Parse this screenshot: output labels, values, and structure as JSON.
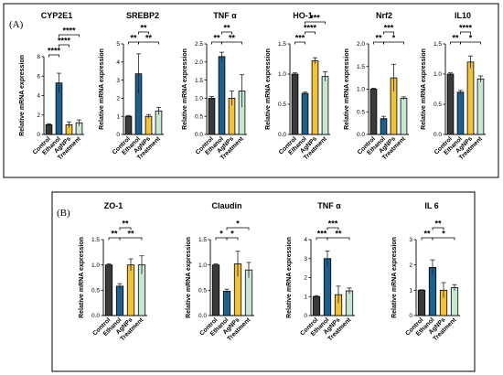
{
  "panels": [
    {
      "label": "(A)"
    },
    {
      "label": "(B)"
    }
  ],
  "colors": {
    "Control": "#3a3a3a",
    "Ethanol": "#1f5f8b",
    "AgNPs": "#f2c23a",
    "Treatment": "#c9e6d2"
  },
  "chart_data": [
    {
      "type": "bar",
      "panel": "A",
      "title": "CYP2E1",
      "ylabel": "Relative mRNA expression",
      "categories": [
        "Control",
        "Ethanol",
        "AgNPs",
        "Treatment"
      ],
      "values": [
        1.0,
        5.3,
        1.0,
        1.2
      ],
      "errors": [
        0.1,
        1.0,
        0.3,
        0.3
      ],
      "ylim": [
        0,
        8
      ],
      "yticks": [
        0,
        2,
        4,
        6,
        8
      ],
      "brackets": [
        {
          "from": 0,
          "to": 1,
          "level": 0,
          "label": "****"
        },
        {
          "from": 1,
          "to": 2,
          "level": 1,
          "label": "****"
        },
        {
          "from": 1,
          "to": 3,
          "level": 2,
          "label": "****"
        }
      ]
    },
    {
      "type": "bar",
      "panel": "A",
      "title": "SREBP2",
      "ylabel": "Relative mRNA expression",
      "categories": [
        "Control",
        "Ethanol",
        "AgNPs",
        "Treatment"
      ],
      "values": [
        1.0,
        3.35,
        1.0,
        1.3
      ],
      "errors": [
        0.05,
        1.1,
        0.1,
        0.2
      ],
      "ylim": [
        0,
        5
      ],
      "yticks": [
        0,
        1,
        2,
        3,
        4,
        5
      ],
      "brackets": [
        {
          "from": 0,
          "to": 1,
          "level": 0,
          "label": "**"
        },
        {
          "from": 1,
          "to": 2,
          "level": 1,
          "label": "**"
        },
        {
          "from": 1,
          "to": 3,
          "level": 0,
          "label": "**"
        }
      ]
    },
    {
      "type": "bar",
      "panel": "A",
      "title": "TNF α",
      "ylabel": "Relative mRNA expression",
      "categories": [
        "Control",
        "Ethanol",
        "AgNPs",
        "Treatment"
      ],
      "values": [
        1.0,
        2.15,
        1.0,
        1.2
      ],
      "errors": [
        0.05,
        0.12,
        0.2,
        0.45
      ],
      "ylim": [
        0,
        2.5
      ],
      "yticks": [
        0.0,
        0.5,
        1.0,
        1.5,
        2.0,
        2.5
      ],
      "brackets": [
        {
          "from": 0,
          "to": 1,
          "level": 0,
          "label": "**"
        },
        {
          "from": 1,
          "to": 2,
          "level": 1,
          "label": "**"
        },
        {
          "from": 1,
          "to": 3,
          "level": 0,
          "label": "**"
        }
      ]
    },
    {
      "type": "bar",
      "panel": "A",
      "title": "HO-1",
      "ylabel": "Relative mRNA expression",
      "categories": [
        "Control",
        "Ethanol",
        "AgNPs",
        "Treatment"
      ],
      "values": [
        1.0,
        0.68,
        1.22,
        0.96
      ],
      "errors": [
        0.02,
        0.02,
        0.05,
        0.08
      ],
      "ylim": [
        0,
        1.5
      ],
      "yticks": [
        0.0,
        0.5,
        1.0,
        1.5
      ],
      "brackets": [
        {
          "from": 0,
          "to": 1,
          "level": 0,
          "label": "***"
        },
        {
          "from": 1,
          "to": 2,
          "level": 1,
          "label": "****"
        },
        {
          "from": 1,
          "to": 3,
          "level": 2,
          "label": "***"
        }
      ]
    },
    {
      "type": "bar",
      "panel": "A",
      "title": "Nrf2",
      "ylabel": "Relative mRNA expression",
      "categories": [
        "Control",
        "Ethanol",
        "AgNPs",
        "Treatment"
      ],
      "values": [
        1.0,
        0.35,
        1.25,
        0.8
      ],
      "errors": [
        0.02,
        0.05,
        0.3,
        0.03
      ],
      "ylim": [
        0,
        2.0
      ],
      "yticks": [
        0.0,
        0.5,
        1.0,
        1.5,
        2.0
      ],
      "brackets": [
        {
          "from": 0,
          "to": 1,
          "level": 0,
          "label": "**"
        },
        {
          "from": 1,
          "to": 2,
          "level": 1,
          "label": "***"
        },
        {
          "from": 1,
          "to": 3,
          "level": 0,
          "label": "*"
        }
      ]
    },
    {
      "type": "bar",
      "panel": "A",
      "title": "IL10",
      "ylabel": "Relative mRNA expression",
      "categories": [
        "Control",
        "Ethanol",
        "AgNPs",
        "Treatment"
      ],
      "values": [
        1.0,
        0.7,
        1.2,
        0.92
      ],
      "errors": [
        0.02,
        0.03,
        0.1,
        0.05
      ],
      "ylim": [
        0,
        1.5
      ],
      "yticks": [
        0.0,
        0.5,
        1.0,
        1.5
      ],
      "brackets": [
        {
          "from": 0,
          "to": 1,
          "level": 0,
          "label": "**"
        },
        {
          "from": 1,
          "to": 2,
          "level": 1,
          "label": "****"
        },
        {
          "from": 1,
          "to": 3,
          "level": 0,
          "label": "*"
        }
      ]
    },
    {
      "type": "bar",
      "panel": "B",
      "title": "ZO-1",
      "ylabel": "Relative mRNA expression",
      "categories": [
        "Control",
        "Ethanol",
        "AgNPs",
        "Treatment"
      ],
      "values": [
        1.0,
        0.58,
        1.0,
        1.0
      ],
      "errors": [
        0.02,
        0.05,
        0.12,
        0.18
      ],
      "ylim": [
        0,
        1.5
      ],
      "yticks": [
        0.0,
        0.5,
        1.0,
        1.5
      ],
      "brackets": [
        {
          "from": 0,
          "to": 1,
          "level": 0,
          "label": "**"
        },
        {
          "from": 1,
          "to": 2,
          "level": 1,
          "label": "**"
        },
        {
          "from": 1,
          "to": 3,
          "level": 0,
          "label": "**"
        }
      ]
    },
    {
      "type": "bar",
      "panel": "B",
      "title": "Claudin",
      "ylabel": "Relative mRNA expression",
      "categories": [
        "Control",
        "Ethanol",
        "AgNPs",
        "Treatment"
      ],
      "values": [
        1.0,
        0.48,
        1.02,
        0.9
      ],
      "errors": [
        0.02,
        0.04,
        0.25,
        0.15
      ],
      "ylim": [
        0,
        1.5
      ],
      "yticks": [
        0.0,
        0.5,
        1.0,
        1.5
      ],
      "brackets": [
        {
          "from": 0,
          "to": 1,
          "level": 0,
          "label": "*"
        },
        {
          "from": 1,
          "to": 2,
          "level": 0,
          "label": "*"
        },
        {
          "from": 1,
          "to": 3,
          "level": 1,
          "label": "*"
        }
      ]
    },
    {
      "type": "bar",
      "panel": "B",
      "title": "TNF α",
      "ylabel": "Relative mRNA expression",
      "categories": [
        "Control",
        "Ethanol",
        "AgNPs",
        "Treatment"
      ],
      "values": [
        1.0,
        3.0,
        1.1,
        1.3
      ],
      "errors": [
        0.05,
        0.4,
        0.45,
        0.15
      ],
      "ylim": [
        0,
        4
      ],
      "yticks": [
        0,
        1,
        2,
        3,
        4
      ],
      "brackets": [
        {
          "from": 0,
          "to": 1,
          "level": 0,
          "label": "***"
        },
        {
          "from": 1,
          "to": 2,
          "level": 1,
          "label": "***"
        },
        {
          "from": 1,
          "to": 3,
          "level": 0,
          "label": "**"
        }
      ]
    },
    {
      "type": "bar",
      "panel": "B",
      "title": "IL 6",
      "ylabel": "Relative mRNA expression",
      "categories": [
        "Control",
        "Ethanol",
        "AgNPs",
        "Treatment"
      ],
      "values": [
        1.0,
        1.9,
        1.0,
        1.1
      ],
      "errors": [
        0.02,
        0.3,
        0.3,
        0.12
      ],
      "ylim": [
        0,
        3
      ],
      "yticks": [
        0,
        1,
        2,
        3
      ],
      "brackets": [
        {
          "from": 0,
          "to": 1,
          "level": 0,
          "label": "**"
        },
        {
          "from": 1,
          "to": 2,
          "level": 1,
          "label": "**"
        },
        {
          "from": 1,
          "to": 3,
          "level": 0,
          "label": "*"
        }
      ]
    }
  ]
}
